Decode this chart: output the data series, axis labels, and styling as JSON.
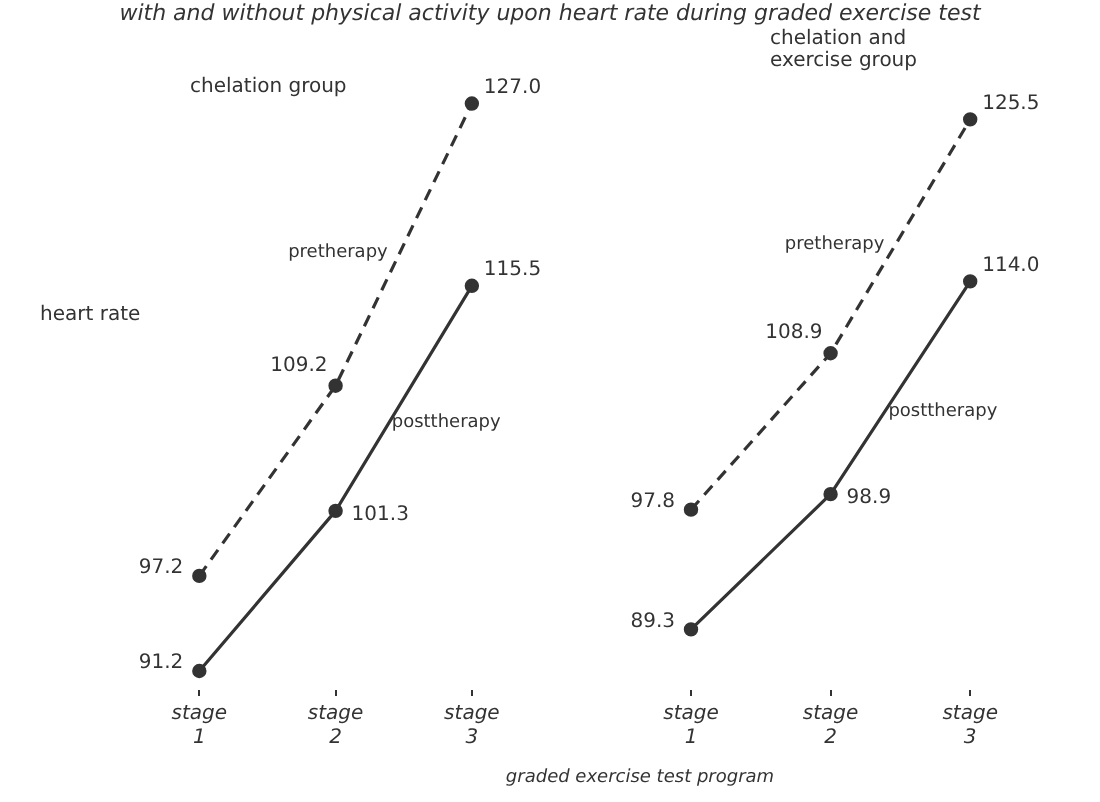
{
  "chart_data": [
    {
      "type": "line",
      "title": "chelation group",
      "ylabel": "heart rate",
      "annotations": [
        "with and without physical activity upon heart rate during graded exercise test",
        "graded exercise test program"
      ],
      "categories": [
        "stage 1",
        "stage 2",
        "stage 3"
      ],
      "tick_labels": "x",
      "grid": false,
      "legend": false,
      "marker": "circle",
      "series": [
        {
          "name": "pretherapy",
          "color": "#333333",
          "line_style": "dashed",
          "values": [
            97.2,
            109.2,
            127.0
          ],
          "value_labels": [
            "97.2",
            "109.2",
            "127.0"
          ]
        },
        {
          "name": "posttherapy",
          "color": "#333333",
          "line_style": "solid",
          "values": [
            91.2,
            101.3,
            115.5
          ],
          "value_labels": [
            "91.2",
            "101.3",
            "115.5"
          ]
        }
      ]
    },
    {
      "type": "line",
      "title": "chelation and exercise group",
      "categories": [
        "stage 1",
        "stage 2",
        "stage 3"
      ],
      "tick_labels": "x",
      "grid": false,
      "legend": false,
      "marker": "circle",
      "series": [
        {
          "name": "pretherapy",
          "color": "#333333",
          "line_style": "dashed",
          "values": [
            97.8,
            108.9,
            125.5
          ],
          "value_labels": [
            "97.8",
            "108.9",
            "125.5"
          ]
        },
        {
          "name": "posttherapy",
          "color": "#333333",
          "line_style": "solid",
          "values": [
            89.3,
            98.9,
            114.0
          ],
          "value_labels": [
            "89.3",
            "98.9",
            "114.0"
          ]
        }
      ]
    }
  ]
}
